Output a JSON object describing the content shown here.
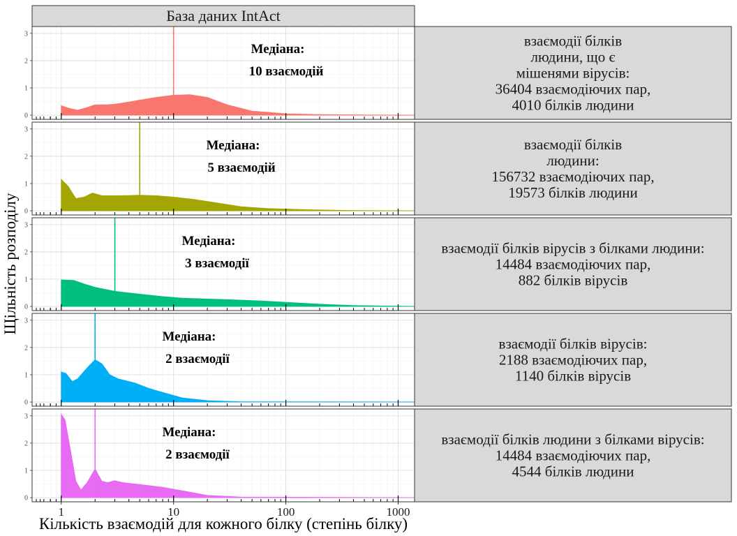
{
  "chart_data": {
    "type": "area",
    "title": "База даних IntAct",
    "xlabel": "Кількість взаємодій для кожного білку (степінь білку)",
    "ylabel": "Щільність розподілу",
    "x_scale": "log10",
    "xlim": [
      0.55,
      1400
    ],
    "ylim": [
      -0.05,
      3.25
    ],
    "x_ticks": [
      1,
      10,
      100,
      1000
    ],
    "x_tick_labels": [
      "1",
      "10",
      "100",
      "1000"
    ],
    "y_ticks": [
      0,
      1,
      2,
      3
    ],
    "y_tick_labels": [
      "0",
      "1",
      "2",
      "3"
    ],
    "grid": true,
    "panels": [
      {
        "label_lines": [
          "взаємодії білків",
          "людини, що є",
          "мішенями вірусів:",
          "36404 взаємодіючих пар,",
          "4010 білків людини"
        ],
        "color": "#F8766D",
        "median": 10,
        "annotation_lines": [
          "Медіана:",
          "10 взаємодій"
        ],
        "points": [
          [
            1,
            0.35
          ],
          [
            1.15,
            0.26
          ],
          [
            1.4,
            0.18
          ],
          [
            1.7,
            0.28
          ],
          [
            2,
            0.38
          ],
          [
            2.5,
            0.38
          ],
          [
            3,
            0.4
          ],
          [
            4,
            0.48
          ],
          [
            5,
            0.55
          ],
          [
            7,
            0.65
          ],
          [
            10,
            0.73
          ],
          [
            14,
            0.75
          ],
          [
            20,
            0.65
          ],
          [
            30,
            0.38
          ],
          [
            50,
            0.15
          ],
          [
            100,
            0.05
          ],
          [
            200,
            0.02
          ],
          [
            500,
            0.01
          ],
          [
            1400,
            0
          ]
        ]
      },
      {
        "label_lines": [
          "взаємодії білків",
          "людини:",
          "156732 взаємодіючих пар,",
          "19573 білків людини"
        ],
        "color": "#A3A500",
        "median": 5,
        "annotation_lines": [
          "Медіана:",
          "5 взаємодій"
        ],
        "points": [
          [
            1,
            1.15
          ],
          [
            1.15,
            0.9
          ],
          [
            1.35,
            0.45
          ],
          [
            1.6,
            0.5
          ],
          [
            1.9,
            0.65
          ],
          [
            2.3,
            0.55
          ],
          [
            3,
            0.55
          ],
          [
            4,
            0.56
          ],
          [
            5,
            0.57
          ],
          [
            7,
            0.55
          ],
          [
            10,
            0.5
          ],
          [
            15,
            0.42
          ],
          [
            25,
            0.28
          ],
          [
            40,
            0.15
          ],
          [
            70,
            0.08
          ],
          [
            150,
            0.04
          ],
          [
            400,
            0.01
          ],
          [
            1400,
            0
          ]
        ]
      },
      {
        "label_lines": [
          "взаємодії білків вірусів з білками людини:",
          "14484 взаємодіючих пар,",
          "882 білків вірусів"
        ],
        "color": "#00BF7D",
        "median": 3,
        "annotation_lines": [
          "Медіана:",
          "3 взаємодії"
        ],
        "points": [
          [
            1,
            0.97
          ],
          [
            1.3,
            0.95
          ],
          [
            1.6,
            0.82
          ],
          [
            2,
            0.7
          ],
          [
            3,
            0.55
          ],
          [
            5,
            0.45
          ],
          [
            8,
            0.36
          ],
          [
            12,
            0.3
          ],
          [
            20,
            0.27
          ],
          [
            35,
            0.24
          ],
          [
            60,
            0.2
          ],
          [
            100,
            0.15
          ],
          [
            200,
            0.08
          ],
          [
            400,
            0.03
          ],
          [
            1000,
            0.01
          ],
          [
            1400,
            0
          ]
        ]
      },
      {
        "label_lines": [
          "взаємодії білків вірусів:",
          "2188 взаємодіючих пар,",
          "1140 білків вірусів"
        ],
        "color": "#00B0F6",
        "median": 2,
        "annotation_lines": [
          "Медіана:",
          "2 взаємодії"
        ],
        "points": [
          [
            1,
            1.1
          ],
          [
            1.1,
            1.05
          ],
          [
            1.25,
            0.75
          ],
          [
            1.4,
            0.85
          ],
          [
            1.7,
            1.25
          ],
          [
            2,
            1.55
          ],
          [
            2.3,
            1.4
          ],
          [
            2.7,
            1.0
          ],
          [
            3.2,
            0.85
          ],
          [
            4.5,
            0.7
          ],
          [
            6,
            0.5
          ],
          [
            8,
            0.35
          ],
          [
            12,
            0.15
          ],
          [
            20,
            0.05
          ],
          [
            40,
            0.01
          ],
          [
            1400,
            0
          ]
        ]
      },
      {
        "label_lines": [
          "взаємодії білків людини з білками вірусів:",
          "14484 взаємодіючих пар,",
          "4544 білків людини"
        ],
        "color": "#E76BF3",
        "median": 2,
        "annotation_lines": [
          "Медіана:",
          "2 взаємодії"
        ],
        "points": [
          [
            1,
            3.05
          ],
          [
            1.08,
            2.85
          ],
          [
            1.2,
            1.8
          ],
          [
            1.35,
            0.6
          ],
          [
            1.5,
            0.28
          ],
          [
            1.7,
            0.55
          ],
          [
            2,
            1.05
          ],
          [
            2.3,
            0.6
          ],
          [
            2.6,
            0.55
          ],
          [
            3,
            0.62
          ],
          [
            3.5,
            0.55
          ],
          [
            5,
            0.48
          ],
          [
            8,
            0.38
          ],
          [
            12,
            0.25
          ],
          [
            20,
            0.08
          ],
          [
            40,
            0.02
          ],
          [
            1400,
            0
          ]
        ]
      }
    ]
  }
}
